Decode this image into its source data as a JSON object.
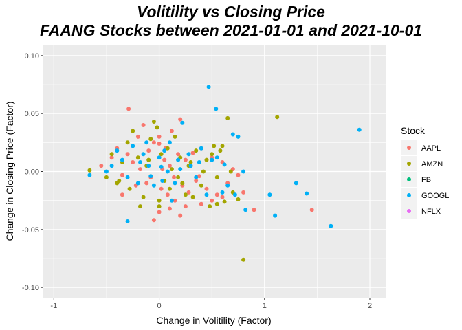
{
  "chart_data": {
    "type": "scatter",
    "title": "Volitility vs Closing Price",
    "subtitle": "FAANG Stocks between 2021-01-01 and 2021-10-01",
    "xlabel": "Change in Volitility (Factor)",
    "ylabel": "Change in Closing Price (Factor)",
    "xlim": [
      -1.1,
      2.15
    ],
    "ylim": [
      -0.1,
      0.1
    ],
    "x_ticks": [
      -1,
      0,
      1,
      2
    ],
    "x_tick_labels": [
      "-1",
      "0",
      "1",
      "2"
    ],
    "y_ticks": [
      -0.1,
      -0.05,
      0.0,
      0.05,
      0.1
    ],
    "y_tick_labels": [
      "-0.10",
      "-0.05",
      "0.00",
      "0.05",
      "0.10"
    ],
    "grid": true,
    "legend": {
      "title": "Stock",
      "placement": "right"
    },
    "series": [
      {
        "name": "AAPL",
        "color": "#F8766D",
        "points": [
          [
            -0.29,
            0.054
          ],
          [
            -0.55,
            0.005
          ],
          [
            -0.45,
            0.012
          ],
          [
            -0.4,
            0.02
          ],
          [
            -0.35,
            -0.003
          ],
          [
            -0.3,
            0.015
          ],
          [
            -0.25,
            0.008
          ],
          [
            -0.2,
            0.03
          ],
          [
            -0.15,
            0.04
          ],
          [
            -0.12,
            -0.01
          ],
          [
            -0.1,
            0.018
          ],
          [
            -0.05,
            0.025
          ],
          [
            0.0,
            0.024
          ],
          [
            0.02,
            -0.015
          ],
          [
            0.05,
            0.01
          ],
          [
            0.08,
            -0.02
          ],
          [
            0.1,
            0.005
          ],
          [
            0.12,
            0.035
          ],
          [
            0.15,
            -0.025
          ],
          [
            0.18,
            0.015
          ],
          [
            0.2,
            0.045
          ],
          [
            0.22,
            -0.012
          ],
          [
            0.25,
            0.01
          ],
          [
            0.28,
            -0.018
          ],
          [
            0.3,
            0.005
          ],
          [
            0.35,
            -0.008
          ],
          [
            0.4,
            0.02
          ],
          [
            0.45,
            -0.015
          ],
          [
            0.5,
            0.012
          ],
          [
            0.55,
            -0.02
          ],
          [
            0.6,
            0.008
          ],
          [
            0.65,
            -0.01
          ],
          [
            0.7,
            0.002
          ],
          [
            0.75,
            -0.003
          ],
          [
            0.8,
            -0.018
          ],
          [
            0.9,
            -0.033
          ],
          [
            -0.05,
            -0.042
          ],
          [
            0.0,
            -0.035
          ],
          [
            0.1,
            -0.032
          ],
          [
            0.2,
            -0.038
          ],
          [
            0.25,
            -0.03
          ],
          [
            0.4,
            -0.028
          ],
          [
            0.5,
            -0.025
          ],
          [
            0.6,
            -0.022
          ],
          [
            1.45,
            -0.033
          ],
          [
            -0.22,
            -0.012
          ],
          [
            -0.18,
            0.002
          ],
          [
            -0.08,
            -0.005
          ],
          [
            0.03,
            0.002
          ],
          [
            0.06,
            0.02
          ],
          [
            0.14,
            -0.005
          ],
          [
            0.32,
            0.016
          ],
          [
            0.38,
            -0.004
          ],
          [
            0.0,
            0.03
          ],
          [
            -0.35,
            -0.02
          ]
        ]
      },
      {
        "name": "AMZN",
        "color": "#A3A500",
        "points": [
          [
            -0.66,
            0.001
          ],
          [
            -0.5,
            -0.005
          ],
          [
            -0.45,
            0.015
          ],
          [
            -0.4,
            -0.01
          ],
          [
            -0.35,
            0.008
          ],
          [
            -0.3,
            0.025
          ],
          [
            -0.28,
            -0.015
          ],
          [
            -0.2,
            0.012
          ],
          [
            -0.15,
            -0.022
          ],
          [
            -0.1,
            0.01
          ],
          [
            -0.05,
            0.043
          ],
          [
            -0.02,
            0.038
          ],
          [
            0.0,
            -0.03
          ],
          [
            0.02,
            0.015
          ],
          [
            0.05,
            -0.008
          ],
          [
            0.08,
            0.02
          ],
          [
            0.1,
            -0.015
          ],
          [
            0.15,
            0.03
          ],
          [
            0.18,
            -0.005
          ],
          [
            0.2,
            0.012
          ],
          [
            0.25,
            -0.02
          ],
          [
            0.3,
            0.008
          ],
          [
            0.35,
            0.018
          ],
          [
            0.4,
            -0.012
          ],
          [
            0.45,
            0.01
          ],
          [
            0.5,
            0.015
          ],
          [
            0.55,
            -0.005
          ],
          [
            0.6,
            0.022
          ],
          [
            0.65,
            0.046
          ],
          [
            0.7,
            -0.018
          ],
          [
            0.75,
            -0.024
          ],
          [
            0.8,
            -0.076
          ],
          [
            1.12,
            0.047
          ],
          [
            -0.25,
            0.035
          ],
          [
            -0.12,
            0.005
          ],
          [
            0.0,
            -0.025
          ],
          [
            0.12,
            0.002
          ],
          [
            0.28,
            0.005
          ],
          [
            0.48,
            -0.03
          ],
          [
            0.55,
            -0.028
          ],
          [
            0.62,
            -0.026
          ],
          [
            -0.38,
            -0.008
          ],
          [
            -0.18,
            -0.03
          ],
          [
            0.22,
            -0.01
          ],
          [
            0.42,
            0.0
          ],
          [
            0.52,
            0.022
          ],
          [
            0.58,
            0.018
          ],
          [
            -0.08,
            0.028
          ],
          [
            0.32,
            -0.022
          ],
          [
            0.68,
            0.0
          ]
        ]
      },
      {
        "name": "FB",
        "color": "#00BF7D",
        "points": []
      },
      {
        "name": "GOOGL",
        "color": "#00B0F6",
        "points": [
          [
            -0.66,
            -0.003
          ],
          [
            -0.5,
            0.0
          ],
          [
            -0.4,
            0.018
          ],
          [
            -0.35,
            0.01
          ],
          [
            -0.3,
            -0.005
          ],
          [
            -0.25,
            0.022
          ],
          [
            -0.2,
            -0.01
          ],
          [
            -0.15,
            0.015
          ],
          [
            -0.1,
            0.005
          ],
          [
            -0.05,
            -0.012
          ],
          [
            0.0,
            0.012
          ],
          [
            0.03,
            -0.008
          ],
          [
            0.05,
            0.018
          ],
          [
            0.08,
            0.0
          ],
          [
            0.1,
            0.025
          ],
          [
            0.15,
            -0.01
          ],
          [
            0.2,
            0.002
          ],
          [
            0.22,
            0.042
          ],
          [
            0.28,
            0.015
          ],
          [
            0.35,
            -0.005
          ],
          [
            0.4,
            0.02
          ],
          [
            0.45,
            -0.02
          ],
          [
            0.47,
            0.073
          ],
          [
            0.5,
            0.01
          ],
          [
            0.54,
            0.054
          ],
          [
            0.6,
            -0.018
          ],
          [
            0.7,
            0.032
          ],
          [
            0.75,
            0.03
          ],
          [
            0.8,
            0.0
          ],
          [
            0.82,
            -0.033
          ],
          [
            1.05,
            -0.02
          ],
          [
            1.1,
            -0.038
          ],
          [
            1.3,
            -0.01
          ],
          [
            1.4,
            -0.019
          ],
          [
            1.63,
            -0.047
          ],
          [
            1.9,
            0.036
          ],
          [
            -0.3,
            -0.043
          ],
          [
            -0.45,
            0.005
          ],
          [
            -0.12,
            0.025
          ],
          [
            0.12,
            -0.025
          ],
          [
            0.3,
            0.005
          ],
          [
            0.55,
            0.012
          ],
          [
            0.65,
            -0.012
          ],
          [
            0.72,
            -0.02
          ],
          [
            -0.18,
            0.008
          ],
          [
            -0.08,
            -0.004
          ],
          [
            0.02,
            0.004
          ],
          [
            0.18,
            0.01
          ],
          [
            0.38,
            0.008
          ],
          [
            0.62,
            0.006
          ]
        ]
      },
      {
        "name": "NFLX",
        "color": "#E76BF3",
        "points": []
      }
    ]
  }
}
